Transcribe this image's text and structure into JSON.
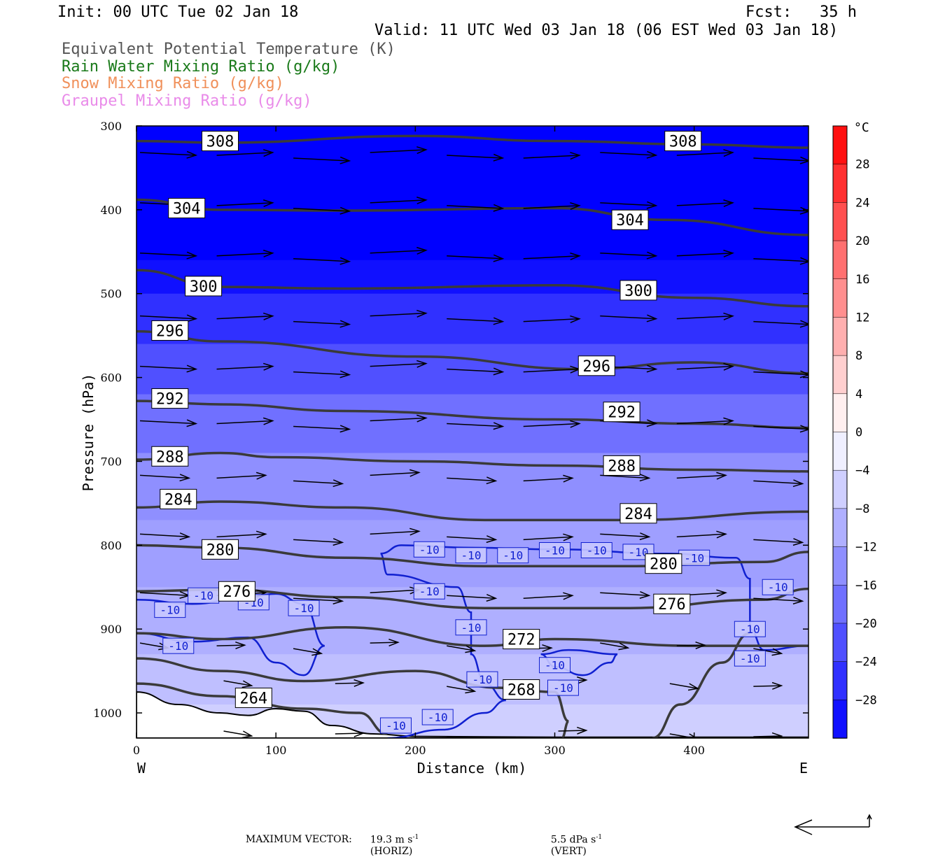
{
  "header": {
    "init": "Init: 00 UTC Tue 02 Jan 18",
    "fcst": "Fcst:   35 h",
    "valid": "Valid: 11 UTC Wed 03 Jan 18 (06 EST Wed 03 Jan 18)"
  },
  "legend_lines": [
    {
      "text": "Equivalent Potential Temperature (K)",
      "color": "#555555"
    },
    {
      "text": "Rain Water Mixing Ratio (g/kg)",
      "color": "#1a7a1a"
    },
    {
      "text": "Snow Mixing Ratio (g/kg)",
      "color": "#f0905a"
    },
    {
      "text": "Graupel Mixing Ratio (g/kg)",
      "color": "#e98be9"
    }
  ],
  "chart_data": {
    "type": "cross-section",
    "xlabel": "Distance (km)",
    "ylabel": "Pressure (hPa)",
    "xlim": [
      0,
      482
    ],
    "ylim": [
      300,
      1030
    ],
    "y_scale": "linear, inverted",
    "x_ticks": [
      0,
      100,
      200,
      300,
      400
    ],
    "y_ticks": [
      300,
      400,
      500,
      600,
      700,
      800,
      900,
      1000
    ],
    "x_end_labels": {
      "left": "W",
      "right": "E"
    },
    "colorbar": {
      "unit": "°C",
      "ticks": [
        28,
        24,
        20,
        16,
        12,
        8,
        4,
        0,
        -4,
        -8,
        -12,
        -16,
        -20,
        -24,
        -28
      ],
      "range": [
        -32,
        32
      ],
      "step": 4
    },
    "temperature_shading_bands": [
      {
        "p": 300,
        "t": -32
      },
      {
        "p": 460,
        "t": -30
      },
      {
        "p": 500,
        "t": -26
      },
      {
        "p": 560,
        "t": -22
      },
      {
        "p": 620,
        "t": -18
      },
      {
        "p": 690,
        "t": -14
      },
      {
        "p": 770,
        "t": -12
      },
      {
        "p": 850,
        "t": -10
      },
      {
        "p": 930,
        "t": -8
      },
      {
        "p": 990,
        "t": -6
      }
    ],
    "theta_e_contours": [
      {
        "value": 308,
        "points": [
          [
            0,
            318
          ],
          [
            60,
            320
          ],
          [
            200,
            312
          ],
          [
            300,
            318
          ],
          [
            400,
            322
          ],
          [
            482,
            326
          ]
        ],
        "labels": [
          [
            60,
            318
          ],
          [
            392,
            318
          ]
        ]
      },
      {
        "value": 304,
        "points": [
          [
            0,
            388
          ],
          [
            60,
            400
          ],
          [
            150,
            401
          ],
          [
            300,
            398
          ],
          [
            380,
            412
          ],
          [
            482,
            430
          ]
        ],
        "labels": [
          [
            36,
            398
          ],
          [
            354,
            412
          ]
        ]
      },
      {
        "value": 300,
        "points": [
          [
            0,
            472
          ],
          [
            60,
            492
          ],
          [
            150,
            494
          ],
          [
            300,
            490
          ],
          [
            400,
            505
          ],
          [
            482,
            515
          ]
        ],
        "labels": [
          [
            48,
            491
          ],
          [
            360,
            496
          ]
        ]
      },
      {
        "value": 296,
        "points": [
          [
            0,
            545
          ],
          [
            60,
            557
          ],
          [
            200,
            575
          ],
          [
            320,
            590
          ],
          [
            400,
            582
          ],
          [
            482,
            595
          ]
        ],
        "labels": [
          [
            24,
            544
          ],
          [
            330,
            586
          ]
        ]
      },
      {
        "value": 292,
        "points": [
          [
            0,
            628
          ],
          [
            60,
            632
          ],
          [
            150,
            640
          ],
          [
            300,
            650
          ],
          [
            400,
            655
          ],
          [
            482,
            660
          ]
        ],
        "labels": [
          [
            24,
            625
          ],
          [
            348,
            641
          ]
        ]
      },
      {
        "value": 288,
        "points": [
          [
            0,
            698
          ],
          [
            60,
            690
          ],
          [
            100,
            695
          ],
          [
            200,
            700
          ],
          [
            300,
            705
          ],
          [
            400,
            710
          ],
          [
            482,
            712
          ]
        ],
        "labels": [
          [
            24,
            694
          ],
          [
            348,
            705
          ]
        ]
      },
      {
        "value": 284,
        "points": [
          [
            0,
            755
          ],
          [
            60,
            748
          ],
          [
            150,
            755
          ],
          [
            250,
            770
          ],
          [
            350,
            770
          ],
          [
            482,
            760
          ]
        ],
        "labels": [
          [
            30,
            745
          ],
          [
            360,
            762
          ]
        ]
      },
      {
        "value": 280,
        "points": [
          [
            0,
            800
          ],
          [
            60,
            803
          ],
          [
            150,
            815
          ],
          [
            250,
            825
          ],
          [
            350,
            825
          ],
          [
            450,
            820
          ],
          [
            482,
            808
          ]
        ],
        "labels": [
          [
            60,
            805
          ],
          [
            378,
            822
          ]
        ]
      },
      {
        "value": 276,
        "points": [
          [
            0,
            855
          ],
          [
            60,
            853
          ],
          [
            150,
            862
          ],
          [
            250,
            875
          ],
          [
            350,
            875
          ],
          [
            450,
            865
          ],
          [
            482,
            852
          ]
        ],
        "labels": [
          [
            72,
            855
          ],
          [
            384,
            870
          ]
        ]
      },
      {
        "value": 272,
        "points": [
          [
            0,
            905
          ],
          [
            60,
            912
          ],
          [
            150,
            898
          ],
          [
            250,
            920
          ],
          [
            300,
            912
          ],
          [
            400,
            920
          ],
          [
            482,
            920
          ]
        ],
        "labels": [
          [
            276,
            912
          ]
        ]
      },
      {
        "value": 268,
        "points": [
          [
            0,
            935
          ],
          [
            60,
            950
          ],
          [
            120,
            962
          ],
          [
            200,
            950
          ],
          [
            260,
            970
          ],
          [
            300,
            975
          ],
          [
            310,
            1010
          ],
          [
            305,
            1030
          ]
        ],
        "labels": [
          [
            276,
            972
          ]
        ]
      },
      {
        "value": 264,
        "points": [
          [
            0,
            965
          ],
          [
            60,
            980
          ],
          [
            120,
            995
          ],
          [
            160,
            1000
          ],
          [
            180,
            1025
          ]
        ],
        "labels": [
          [
            84,
            982
          ]
        ]
      }
    ],
    "isotherm_minus10": {
      "value": -10,
      "labels": [
        [
          24,
          877
        ],
        [
          48,
          860
        ],
        [
          84,
          868
        ],
        [
          120,
          875
        ],
        [
          30,
          920
        ],
        [
          210,
          855
        ],
        [
          210,
          805
        ],
        [
          240,
          812
        ],
        [
          270,
          812
        ],
        [
          300,
          806
        ],
        [
          330,
          806
        ],
        [
          360,
          808
        ],
        [
          400,
          815
        ],
        [
          240,
          898
        ],
        [
          248,
          960
        ],
        [
          300,
          943
        ],
        [
          306,
          970
        ],
        [
          440,
          900
        ],
        [
          440,
          935
        ],
        [
          460,
          850
        ],
        [
          186,
          1015
        ],
        [
          216,
          1005
        ]
      ]
    },
    "max_vector": {
      "horiz": "19.3 m s",
      "vert": "5.5 dPa s"
    }
  },
  "footer": {
    "label": "MAXIMUM VECTOR:",
    "horiz_value": "19.3 m s",
    "horiz_exp": "-1",
    "horiz_unit": "(HORIZ)",
    "vert_value": "5.5 dPa s",
    "vert_exp": "-1",
    "vert_unit": "(VERT)"
  }
}
